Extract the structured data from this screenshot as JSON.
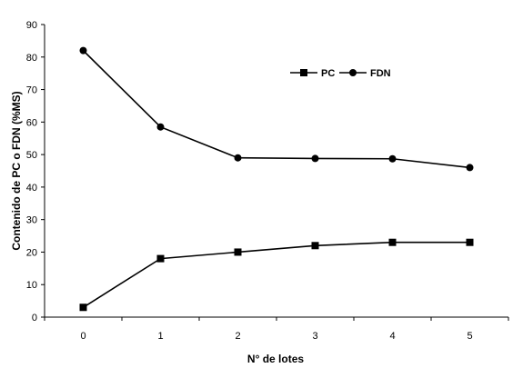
{
  "chart_data": {
    "type": "line",
    "title": "",
    "xlabel": "N° de lotes",
    "ylabel": "Contenido de PC o FDN (%MS)",
    "x": [
      0,
      1,
      2,
      3,
      4,
      5
    ],
    "xticks": [
      "0",
      "1",
      "2",
      "3",
      "4",
      "5"
    ],
    "ylim": [
      0,
      90
    ],
    "yticks": [
      "0",
      "10",
      "20",
      "30",
      "40",
      "50",
      "60",
      "70",
      "80",
      "90"
    ],
    "grid": false,
    "legend_position": "top-right",
    "series": [
      {
        "name": "PC",
        "marker": "square",
        "color": "#000000",
        "values": [
          3,
          18,
          20,
          22,
          23,
          23
        ]
      },
      {
        "name": "FDN",
        "marker": "circle",
        "color": "#000000",
        "values": [
          82,
          58.5,
          49,
          48.8,
          48.7,
          46
        ]
      }
    ]
  }
}
